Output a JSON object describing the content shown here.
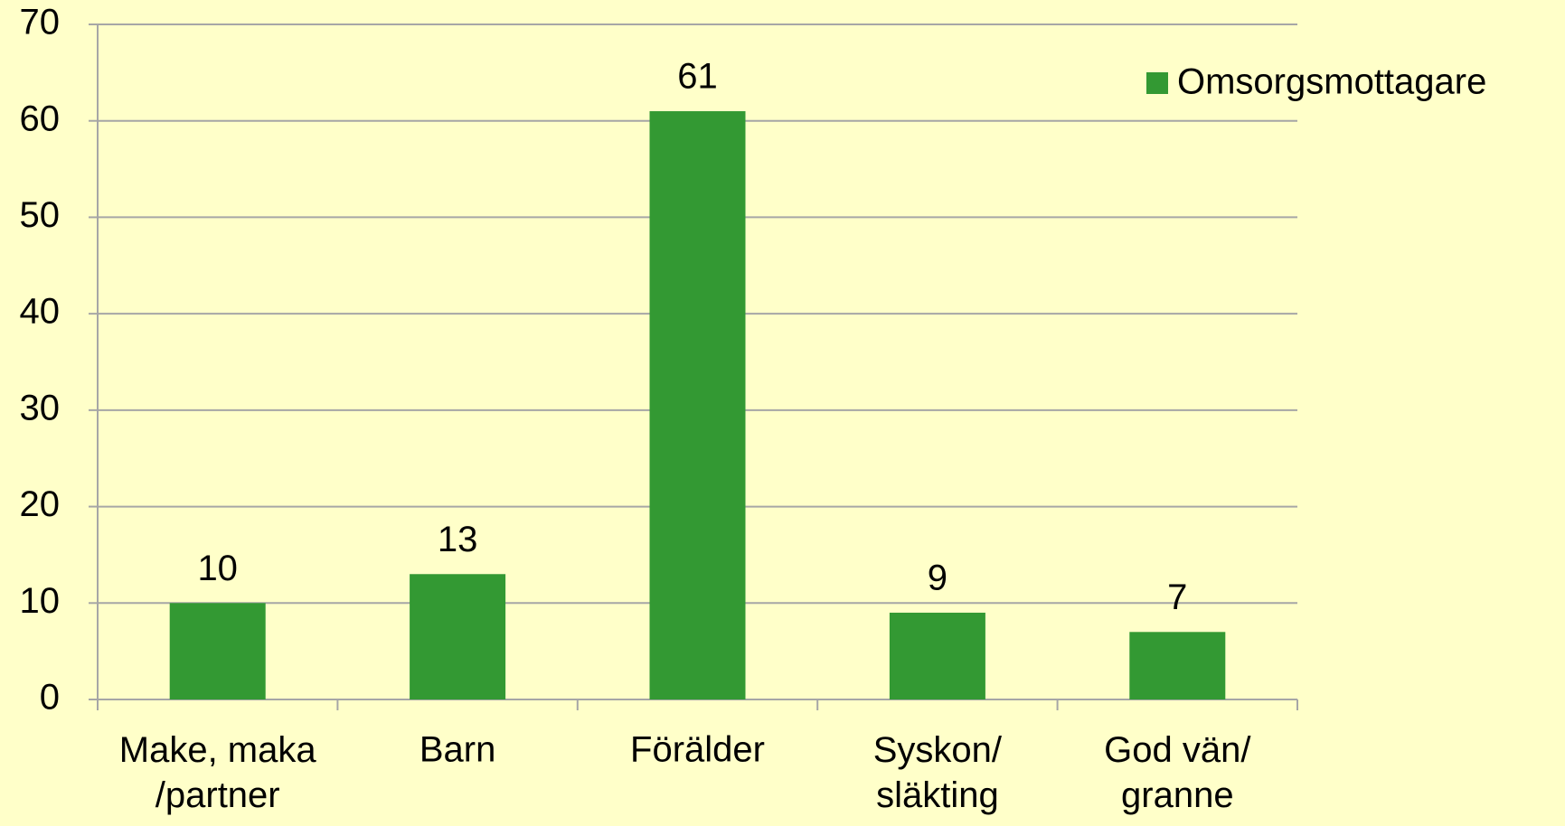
{
  "chart_data": {
    "type": "bar",
    "categories": [
      "Make, maka\n/partner",
      "Barn",
      "Förälder",
      "Syskon/\nsläkting",
      "God vän/\ngranne"
    ],
    "series": [
      {
        "name": "Omsorgsmottagare",
        "color": "#339933",
        "values": [
          10,
          13,
          61,
          9,
          7
        ]
      }
    ],
    "ylim": [
      0,
      70
    ],
    "yticks": [
      0,
      10,
      20,
      30,
      40,
      50,
      60,
      70
    ],
    "grid": true,
    "legend": "right"
  }
}
